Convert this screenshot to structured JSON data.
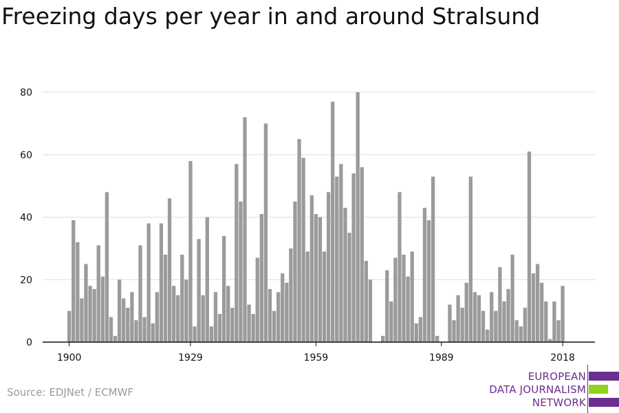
{
  "title": "Freezing days per year in and around Stralsund",
  "source": "Source: EDJNet / ECMWF",
  "logo": {
    "lines": [
      "EUROPEAN",
      "DATA JOURNALISM",
      "NETWORK"
    ],
    "colors": {
      "purple": "#6b2d8f",
      "green": "#8fd31c"
    }
  },
  "colors": {
    "bar": "#9b9b9b",
    "grid": "#dddddd",
    "axis": "#111111"
  },
  "chart_data": {
    "type": "bar",
    "title": "Freezing days per year in and around Stralsund",
    "xlabel": "",
    "ylabel": "",
    "ylim": [
      0,
      80
    ],
    "yticks": [
      0,
      20,
      40,
      60,
      80
    ],
    "xticks": [
      1900,
      1929,
      1959,
      1989,
      2018
    ],
    "grid": true,
    "x": [
      1900,
      1901,
      1902,
      1903,
      1904,
      1905,
      1906,
      1907,
      1908,
      1909,
      1910,
      1911,
      1912,
      1913,
      1914,
      1915,
      1916,
      1917,
      1918,
      1919,
      1920,
      1921,
      1922,
      1923,
      1924,
      1925,
      1926,
      1927,
      1928,
      1929,
      1930,
      1931,
      1932,
      1933,
      1934,
      1935,
      1936,
      1937,
      1938,
      1939,
      1940,
      1941,
      1942,
      1943,
      1944,
      1945,
      1946,
      1947,
      1948,
      1949,
      1950,
      1951,
      1952,
      1953,
      1954,
      1955,
      1956,
      1957,
      1958,
      1959,
      1960,
      1961,
      1962,
      1963,
      1964,
      1965,
      1966,
      1967,
      1968,
      1969,
      1970,
      1971,
      1972,
      1973,
      1974,
      1975,
      1976,
      1977,
      1978,
      1979,
      1980,
      1981,
      1982,
      1983,
      1984,
      1985,
      1986,
      1987,
      1988,
      1989,
      1990,
      1991,
      1992,
      1993,
      1994,
      1995,
      1996,
      1997,
      1998,
      1999,
      2000,
      2001,
      2002,
      2003,
      2004,
      2005,
      2006,
      2007,
      2008,
      2009,
      2010,
      2011,
      2012,
      2013,
      2014,
      2015,
      2016,
      2017,
      2018
    ],
    "values": [
      10,
      39,
      32,
      14,
      25,
      18,
      17,
      31,
      21,
      48,
      8,
      2,
      20,
      14,
      11,
      16,
      7,
      31,
      8,
      38,
      6,
      16,
      38,
      28,
      46,
      18,
      15,
      28,
      20,
      58,
      5,
      33,
      15,
      40,
      5,
      16,
      9,
      34,
      18,
      11,
      57,
      45,
      72,
      12,
      9,
      27,
      41,
      70,
      17,
      10,
      16,
      22,
      19,
      30,
      45,
      65,
      59,
      29,
      47,
      41,
      40,
      29,
      48,
      77,
      53,
      57,
      43,
      35,
      54,
      80,
      56,
      26,
      20,
      0,
      0,
      2,
      23,
      13,
      27,
      48,
      28,
      21,
      29,
      6,
      8,
      43,
      39,
      53,
      2,
      0,
      0,
      12,
      7,
      15,
      11,
      19,
      53,
      16,
      15,
      10,
      4,
      16,
      10,
      24,
      13,
      17,
      28,
      7,
      5,
      11,
      61,
      22,
      25,
      19,
      13,
      1,
      13,
      7,
      18
    ]
  }
}
